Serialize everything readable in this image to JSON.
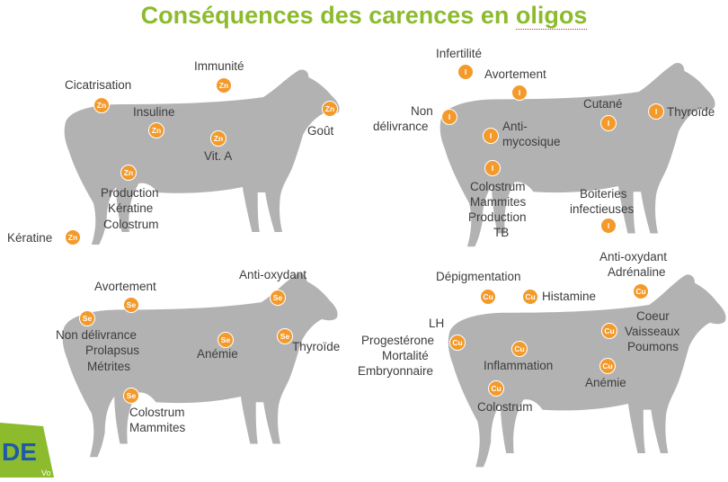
{
  "title": {
    "pre": "Conséquences des carences en ",
    "word": "oligos"
  },
  "colors": {
    "title": "#8cbb2d",
    "badge": "#f39a2a",
    "cow": "#b2b2b2",
    "text": "#3d3d3d"
  },
  "logo": {
    "text": "DE",
    "sub": "Vo"
  },
  "panels": {
    "zn": {
      "symbol": "Zn",
      "labels": {
        "cicatrisation": "Cicatrisation",
        "immunite": "Immunité",
        "insuline": "Insuline",
        "gout": "Goût",
        "vita": "Vit. A",
        "production": "Production",
        "keratine1": "Kératine",
        "colostrum": "Colostrum",
        "keratine2": "Kératine"
      }
    },
    "i": {
      "symbol": "I",
      "labels": {
        "infertilite": "Infertilité",
        "avortement": "Avortement",
        "non": "Non",
        "delivrance": "délivrance",
        "cutane": "Cutané",
        "thyroide": "Thyroïde",
        "anti": "Anti-",
        "mycosique": "mycosique",
        "colostrum": "Colostrum",
        "mammites": "Mammites",
        "production": "Production",
        "tb": "TB",
        "boiteries": "Boiteries",
        "infectieuses": "infectieuses"
      }
    },
    "se": {
      "symbol": "Se",
      "labels": {
        "avortement": "Avortement",
        "antioxydant": "Anti-oxydant",
        "nondelivrance": "Non délivrance",
        "prolapsus": "Prolapsus",
        "metrites": "Métrites",
        "anemie": "Anémie",
        "thyroide": "Thyroïde",
        "colostrum": "Colostrum",
        "mammites": "Mammites"
      }
    },
    "cu": {
      "symbol": "Cu",
      "labels": {
        "depigmentation": "Dépigmentation",
        "antioxydant": "Anti-oxydant",
        "adrenaline": "Adrénaline",
        "histamine": "Histamine",
        "lh": "LH",
        "progesterone": "Progestérone",
        "mortalite": "Mortalité",
        "embryonnaire": "Embryonnaire",
        "coeur": "Coeur",
        "vaisseaux": "Vaisseaux",
        "poumons": "Poumons",
        "inflammation": "Inflammation",
        "anemie": "Anémie",
        "colostrum": "Colostrum"
      }
    }
  }
}
